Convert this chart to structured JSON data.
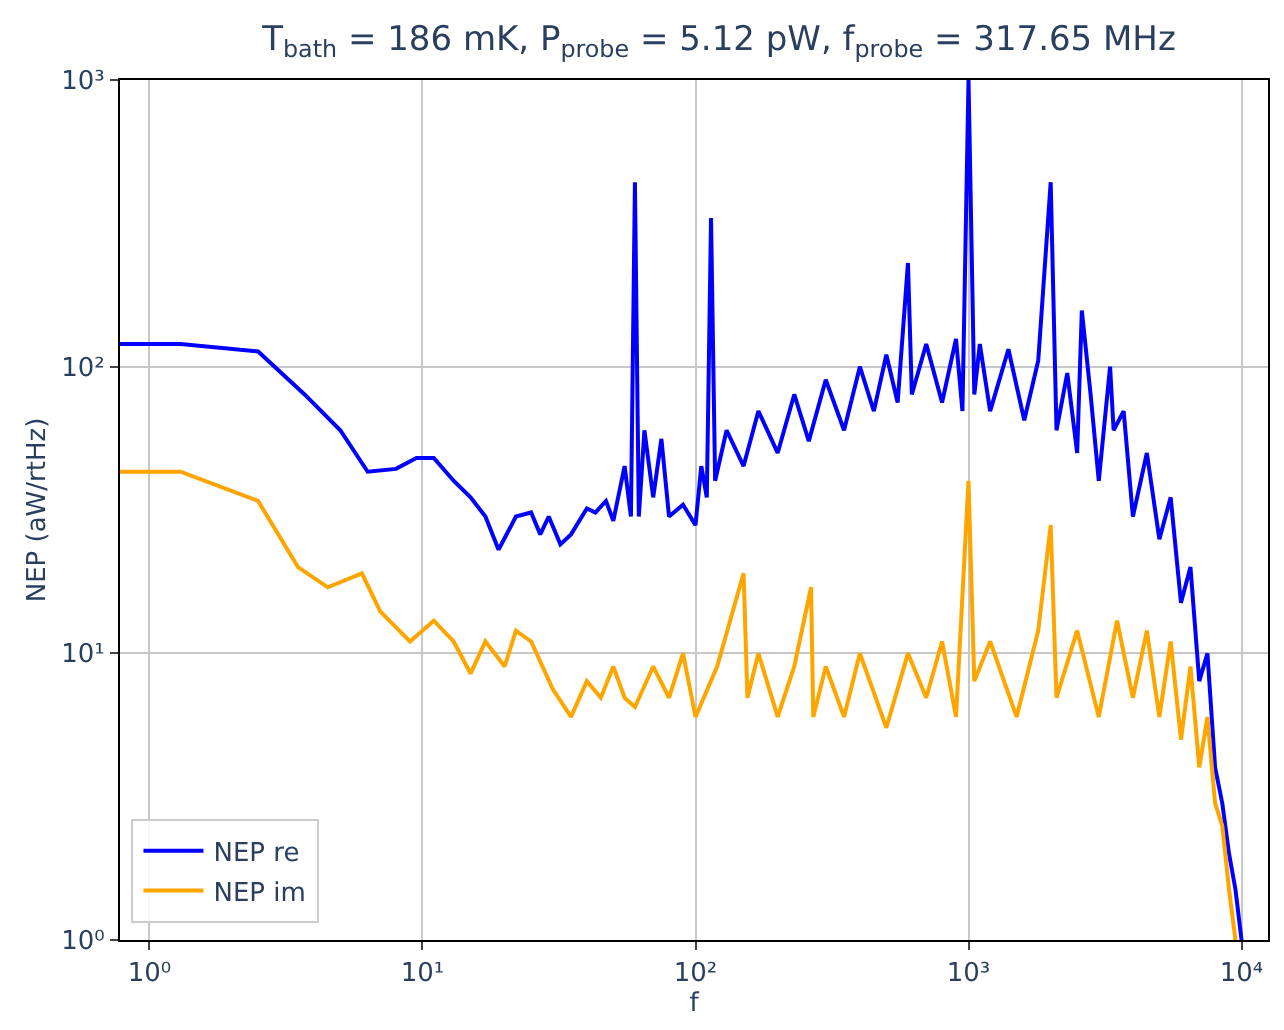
{
  "chart_data": {
    "type": "line",
    "title": "T$_{bath}$ = 186 mK, P$_{probe}$ = 5.12 pW, f$_{probe}$ = 317.65 MHz",
    "xlabel": "f",
    "ylabel": "NEP (aW/rtHz)",
    "log": "xy",
    "grid": true,
    "legend": "bottom left",
    "line_style": "solid",
    "xlim": [
      0.78,
      12500
    ],
    "ylim": [
      1,
      1000
    ],
    "xticks": [
      {
        "value": 1,
        "label": "10⁰"
      },
      {
        "value": 10,
        "label": "10¹"
      },
      {
        "value": 100,
        "label": "10²"
      },
      {
        "value": 1000,
        "label": "10³"
      },
      {
        "value": 10000,
        "label": "10⁴"
      }
    ],
    "yticks": [
      {
        "value": 1,
        "label": "10⁰"
      },
      {
        "value": 10,
        "label": "10¹"
      },
      {
        "value": 100,
        "label": "10²"
      },
      {
        "value": 1000,
        "label": "10³"
      }
    ],
    "series": [
      {
        "name": "NEP re",
        "color": "#0000ff",
        "x": [
          0.78,
          1.3,
          2.5,
          3.7,
          5,
          6.3,
          8,
          9.5,
          11,
          13,
          15,
          17,
          19,
          22,
          25,
          27,
          29,
          32,
          35,
          40,
          43,
          47,
          50,
          55,
          58,
          60,
          62,
          65,
          70,
          75,
          80,
          90,
          100,
          105,
          110,
          114,
          118,
          130,
          150,
          170,
          200,
          230,
          260,
          300,
          350,
          400,
          450,
          500,
          550,
          600,
          620,
          700,
          800,
          900,
          950,
          1000,
          1050,
          1100,
          1200,
          1400,
          1600,
          1800,
          2000,
          2100,
          2300,
          2500,
          2600,
          2800,
          3000,
          3300,
          3400,
          3700,
          4000,
          4500,
          5000,
          5500,
          6000,
          6500,
          7000,
          7500,
          8000,
          8500,
          9000,
          9500,
          10000
        ],
        "values": [
          120,
          120,
          113,
          80,
          60,
          43,
          44,
          48,
          48,
          40,
          35,
          30,
          23,
          30,
          31,
          26,
          30,
          24,
          26,
          32,
          31,
          34,
          29,
          45,
          30,
          440,
          30,
          60,
          35,
          56,
          30,
          33,
          28,
          45,
          35,
          330,
          40,
          60,
          45,
          70,
          50,
          80,
          55,
          90,
          60,
          100,
          70,
          110,
          75,
          230,
          80,
          120,
          75,
          125,
          70,
          1000,
          80,
          120,
          70,
          115,
          65,
          105,
          440,
          60,
          95,
          50,
          157,
          80,
          40,
          100,
          60,
          70,
          30,
          50,
          25,
          35,
          15,
          20,
          8,
          10,
          4,
          3,
          2,
          1.5,
          1
        ]
      },
      {
        "name": "NEP im",
        "color": "#ffa500",
        "x": [
          0.78,
          1.3,
          2.5,
          3.5,
          4.5,
          6,
          7,
          9,
          11,
          13,
          15,
          17,
          20,
          22,
          25,
          30,
          35,
          40,
          45,
          50,
          55,
          60,
          70,
          80,
          90,
          100,
          120,
          150,
          155,
          170,
          200,
          230,
          265,
          270,
          300,
          350,
          400,
          500,
          600,
          700,
          800,
          900,
          1000,
          1050,
          1200,
          1500,
          1800,
          2000,
          2100,
          2500,
          3000,
          3500,
          4000,
          4500,
          5000,
          5500,
          6000,
          6500,
          7000,
          7500,
          8000,
          8500,
          9000,
          9500
        ],
        "values": [
          43,
          43,
          34,
          20,
          17,
          19,
          14,
          11,
          13,
          11,
          8.5,
          11,
          9,
          12,
          11,
          7.5,
          6,
          8,
          7,
          9,
          7,
          6.5,
          9,
          7,
          10,
          6,
          9,
          19,
          7,
          10,
          6,
          9,
          17,
          6,
          9,
          6,
          10,
          5.5,
          10,
          7,
          11,
          6,
          40,
          8,
          11,
          6,
          12,
          28,
          7,
          12,
          6,
          13,
          7,
          12,
          6,
          11,
          5,
          9,
          4,
          6,
          3,
          2.5,
          1.5,
          1
        ]
      }
    ]
  }
}
